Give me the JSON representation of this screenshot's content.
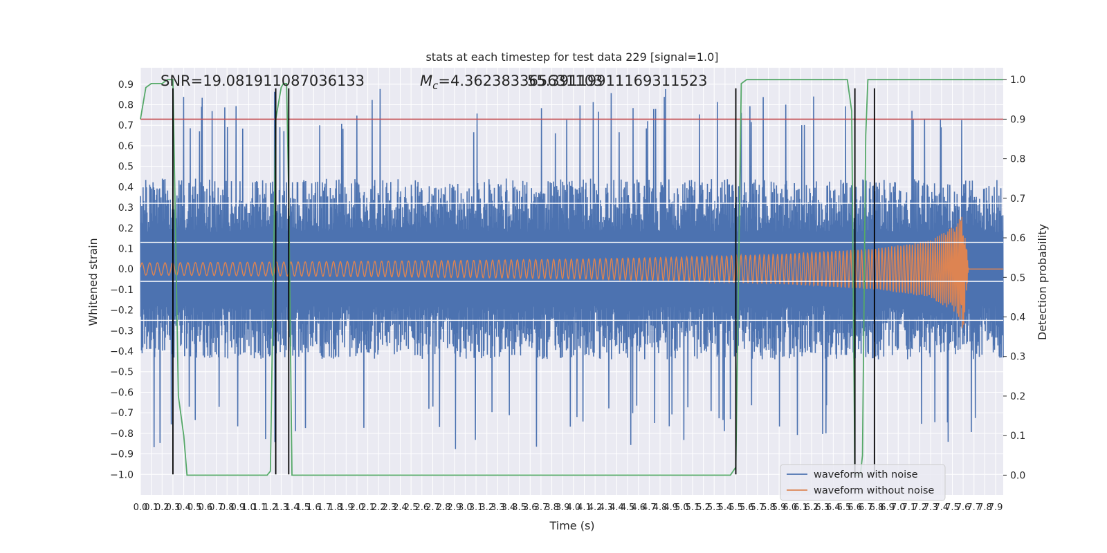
{
  "chart_data": {
    "type": "line",
    "title": "stats at each timestep for test data 229 [signal=1.0]",
    "xlabel": "Time (s)",
    "ylabel": "Whitened strain",
    "ylabel_right": "Detection probability",
    "xlim": [
      0.0,
      7.97
    ],
    "ylim": [
      -1.1,
      0.98
    ],
    "ylim_right": [
      -0.05,
      1.03
    ],
    "grid": true,
    "x_ticks": [
      "0.0",
      "0.1",
      "0.2",
      "0.3",
      "0.4",
      "0.5",
      "0.6",
      "0.7",
      "0.8",
      "0.9",
      "1.0",
      "1.1",
      "1.2",
      "1.3",
      "1.4",
      "1.5",
      "1.6",
      "1.7",
      "1.8",
      "1.9",
      "2.0",
      "2.1",
      "2.2",
      "2.3",
      "2.4",
      "2.5",
      "2.6",
      "2.7",
      "2.8",
      "2.9",
      "3.0",
      "3.1",
      "3.2",
      "3.3",
      "3.4",
      "3.5",
      "3.6",
      "3.7",
      "3.8",
      "3.9",
      "4.0",
      "4.1",
      "4.2",
      "4.3",
      "4.4",
      "4.5",
      "4.6",
      "4.7",
      "4.8",
      "4.9",
      "5.0",
      "5.1",
      "5.2",
      "5.3",
      "5.4",
      "5.5",
      "5.6",
      "5.7",
      "5.8",
      "5.9",
      "6.0",
      "6.1",
      "6.2",
      "6.3",
      "6.4",
      "6.5",
      "6.6",
      "6.7",
      "6.8",
      "6.9",
      "7.0",
      "7.1",
      "7.2",
      "7.3",
      "7.4",
      "7.5",
      "7.6",
      "7.7",
      "7.8",
      "7.9"
    ],
    "y_ticks": [
      "0.9",
      "0.8",
      "0.7",
      "0.6",
      "0.5",
      "0.4",
      "0.3",
      "0.2",
      "0.1",
      "0.0",
      "−0.1",
      "−0.2",
      "−0.3",
      "−0.4",
      "−0.5",
      "−0.6",
      "−0.7",
      "−0.8",
      "−0.9",
      "−1.0"
    ],
    "y_ticks_right": [
      "1.0",
      "0.9",
      "0.8",
      "0.7",
      "0.6",
      "0.5",
      "0.4",
      "0.3",
      "0.2",
      "0.1",
      "0.0"
    ],
    "annotations": {
      "snr": "SNR=19.081911087036133",
      "mc_symbol": "M",
      "mc_sub": "c",
      "mc_value": "=4.362383365631103",
      "overlap": "55.39119911169311523"
    },
    "series": [
      {
        "name": "waveform with noise",
        "color": "#4c72b0",
        "noise_amplitude_typical": 0.4,
        "noise_peak": 0.88
      },
      {
        "name": "waveform without noise",
        "color": "#dd8452",
        "envelope": {
          "x": [
            0.0,
            1.0,
            2.0,
            3.0,
            4.0,
            5.0,
            6.0,
            6.8,
            7.3,
            7.55,
            7.6,
            7.65,
            7.97
          ],
          "amp": [
            0.03,
            0.033,
            0.037,
            0.042,
            0.048,
            0.058,
            0.075,
            0.1,
            0.14,
            0.22,
            0.3,
            0.0,
            0.0
          ]
        },
        "chirp_end_time": 7.65
      },
      {
        "name": "detection probability",
        "axis": "right",
        "color": "#55a868",
        "x": [
          0.0,
          0.05,
          0.1,
          0.15,
          0.2,
          0.25,
          0.3,
          0.35,
          0.4,
          0.43,
          0.5,
          0.6,
          1.0,
          1.1,
          1.17,
          1.2,
          1.25,
          1.3,
          1.32,
          1.35,
          1.37,
          1.4,
          1.45,
          1.5,
          2.0,
          3.0,
          4.0,
          5.0,
          5.45,
          5.5,
          5.55,
          5.6,
          6.0,
          6.5,
          6.53,
          6.57,
          6.6,
          6.65,
          6.67,
          6.7,
          6.72,
          6.75,
          6.8,
          7.0,
          7.97
        ],
        "y": [
          0.9,
          0.98,
          0.99,
          0.99,
          0.99,
          1.0,
          1.0,
          0.2,
          0.1,
          0.0,
          0.0,
          0.0,
          0.0,
          0.0,
          0.0,
          0.01,
          0.9,
          0.98,
          0.99,
          0.99,
          0.7,
          0.0,
          0.0,
          0.0,
          0.0,
          0.0,
          0.0,
          0.0,
          0.0,
          0.02,
          0.99,
          1.0,
          1.0,
          1.0,
          1.0,
          0.92,
          0.0,
          0.0,
          0.05,
          0.86,
          1.0,
          1.0,
          1.0,
          1.0,
          1.0
        ]
      },
      {
        "name": "threshold",
        "axis": "right",
        "color": "#c44e52",
        "value": 0.9
      }
    ],
    "vlines": {
      "color": "#000000",
      "x": [
        0.3,
        1.25,
        1.37,
        5.5,
        6.6,
        6.78
      ],
      "ymin": -1.0,
      "ymax": 0.88
    },
    "hlines_white": {
      "y": [
        0.32,
        0.13,
        -0.06,
        -0.25
      ]
    },
    "legend": {
      "placement": "lower-right",
      "entries": [
        "waveform with noise",
        "waveform without noise"
      ]
    }
  }
}
